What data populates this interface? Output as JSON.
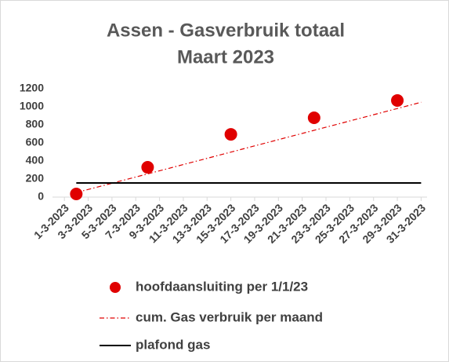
{
  "chart_data": {
    "type": "scatter",
    "title": "Assen - Gasverbruik totaal",
    "subtitle": "Maart 2023",
    "xlim": [
      0,
      31.5
    ],
    "xticks": [
      {
        "value": 1,
        "label": "1-3-2023"
      },
      {
        "value": 3,
        "label": "3-3-2023"
      },
      {
        "value": 5,
        "label": "5-3-2023"
      },
      {
        "value": 7,
        "label": "7-3-2023"
      },
      {
        "value": 9,
        "label": "9-3-2023"
      },
      {
        "value": 11,
        "label": "11-3-2023"
      },
      {
        "value": 13,
        "label": "13-3-2023"
      },
      {
        "value": 15,
        "label": "15-3-2023"
      },
      {
        "value": 17,
        "label": "17-3-2023"
      },
      {
        "value": 19,
        "label": "19-3-2023"
      },
      {
        "value": 21,
        "label": "21-3-2023"
      },
      {
        "value": 23,
        "label": "23-3-2023"
      },
      {
        "value": 25,
        "label": "25-3-2023"
      },
      {
        "value": 27,
        "label": "27-3-2023"
      },
      {
        "value": 29,
        "label": "29-3-2023"
      },
      {
        "value": 31,
        "label": "31-3-2023"
      }
    ],
    "ylim": [
      0,
      1200
    ],
    "yticks": [
      0,
      200,
      400,
      600,
      800,
      1000,
      1200
    ],
    "series": [
      {
        "name": "hoofdaansluiting per 1/1/23",
        "color": "#e00000",
        "kind": "points",
        "x": [
          2,
          8,
          15,
          22,
          29
        ],
        "values": [
          35,
          330,
          695,
          878,
          1070
        ]
      },
      {
        "name": "cum. Gas verbruik per maand",
        "color": "#e00000",
        "kind": "dashdot",
        "x": [
          2,
          31
        ],
        "values": [
          50,
          1050
        ]
      },
      {
        "name": "plafond gas",
        "color": "#000000",
        "kind": "solid",
        "x": [
          2,
          31
        ],
        "values": [
          157,
          157
        ]
      }
    ]
  }
}
